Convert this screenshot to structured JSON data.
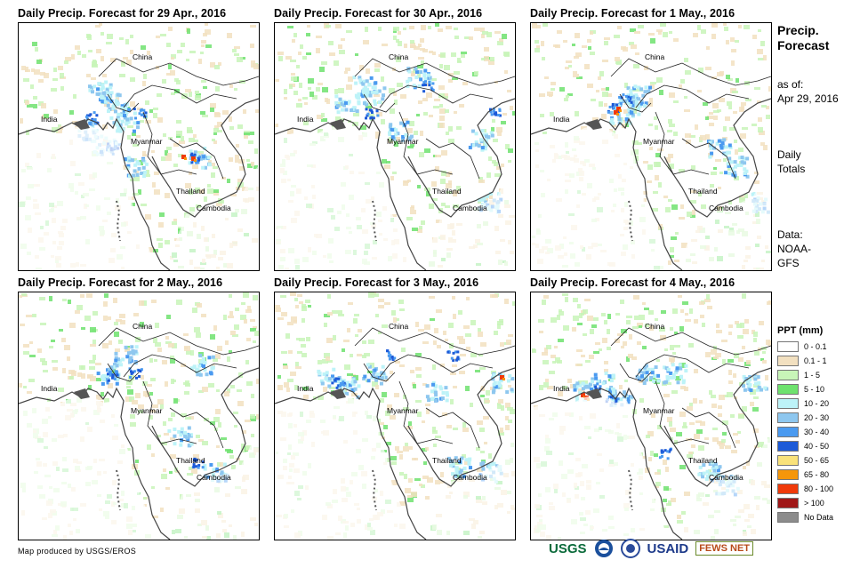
{
  "panels": [
    {
      "title": "Daily Precip. Forecast for 29 Apr., 2016",
      "heavy": [
        [
          90,
          75
        ],
        [
          100,
          85
        ],
        [
          75,
          120
        ],
        [
          110,
          100
        ],
        [
          95,
          135
        ],
        [
          120,
          110
        ],
        [
          200,
          150
        ],
        [
          130,
          160
        ]
      ],
      "medium": [
        [
          198,
          150
        ],
        [
          135,
          100
        ],
        [
          82,
          105
        ],
        [
          105,
          140
        ]
      ],
      "extreme": [
        [
          185,
          150
        ],
        [
          196,
          152
        ]
      ]
    },
    {
      "title": "Daily Precip. Forecast for 30 Apr., 2016",
      "heavy": [
        [
          100,
          70
        ],
        [
          110,
          80
        ],
        [
          160,
          60
        ],
        [
          230,
          130
        ],
        [
          240,
          200
        ],
        [
          140,
          120
        ],
        [
          80,
          90
        ]
      ],
      "medium": [
        [
          108,
          100
        ],
        [
          170,
          70
        ],
        [
          245,
          100
        ]
      ],
      "extreme": []
    },
    {
      "title": "Daily Precip. Forecast for 1 May., 2016",
      "heavy": [
        [
          100,
          100
        ],
        [
          110,
          90
        ],
        [
          120,
          80
        ],
        [
          210,
          140
        ],
        [
          230,
          160
        ],
        [
          260,
          200
        ]
      ],
      "medium": [
        [
          90,
          95
        ],
        [
          105,
          85
        ]
      ],
      "extreme": [
        [
          95,
          100
        ],
        [
          98,
          96
        ]
      ]
    },
    {
      "title": "Daily Precip. Forecast for 2 May., 2016",
      "heavy": [
        [
          100,
          90
        ],
        [
          120,
          70
        ],
        [
          205,
          80
        ],
        [
          180,
          160
        ],
        [
          220,
          200
        ]
      ],
      "medium": [
        [
          105,
          95
        ],
        [
          130,
          90
        ],
        [
          200,
          190
        ]
      ],
      "extreme": []
    },
    {
      "title": "Daily Precip. Forecast for 3 May., 2016",
      "heavy": [
        [
          60,
          95
        ],
        [
          80,
          105
        ],
        [
          110,
          90
        ],
        [
          180,
          110
        ],
        [
          255,
          100
        ],
        [
          240,
          200
        ],
        [
          205,
          195
        ]
      ],
      "medium": [
        [
          70,
          100
        ],
        [
          130,
          70
        ],
        [
          200,
          70
        ]
      ],
      "extreme": [
        [
          255,
          95
        ]
      ]
    },
    {
      "title": "Daily Precip. Forecast for 4 May., 2016",
      "heavy": [
        [
          60,
          110
        ],
        [
          80,
          100
        ],
        [
          100,
          115
        ],
        [
          130,
          90
        ],
        [
          160,
          90
        ],
        [
          200,
          200
        ],
        [
          220,
          215
        ],
        [
          250,
          100
        ]
      ],
      "medium": [
        [
          70,
          105
        ],
        [
          90,
          120
        ],
        [
          150,
          180
        ]
      ],
      "extreme": [
        [
          58,
          115
        ],
        [
          62,
          118
        ]
      ]
    }
  ],
  "map_labels": {
    "china": "China",
    "india": "India",
    "myanmar": "Myanmar",
    "thailand": "Thailand",
    "cambodia": "Cambodia"
  },
  "sidebar": {
    "title_line1": "Precip.",
    "title_line2": "Forecast",
    "asof_line1": "as of:",
    "asof_line2": "Apr 29, 2016",
    "daily_line1": "Daily",
    "daily_line2": "Totals",
    "data_line1": "Data:",
    "data_line2": "NOAA-",
    "data_line3": "GFS"
  },
  "legend": {
    "title": "PPT (mm)",
    "items": [
      {
        "label": "0 - 0.1",
        "color": "#ffffff"
      },
      {
        "label": "0.1 - 1",
        "color": "#f2e0c0"
      },
      {
        "label": "1 - 5",
        "color": "#c8f5b8"
      },
      {
        "label": "5 - 10",
        "color": "#6ee26e"
      },
      {
        "label": "10 - 20",
        "color": "#bdf3f8"
      },
      {
        "label": "20 - 30",
        "color": "#8ec7ef"
      },
      {
        "label": "30 - 40",
        "color": "#4a9af0"
      },
      {
        "label": "40 - 50",
        "color": "#1c5ad8"
      },
      {
        "label": "50 - 65",
        "color": "#f9e27a"
      },
      {
        "label": "65 - 80",
        "color": "#f5960a"
      },
      {
        "label": "80 - 100",
        "color": "#f03a0a"
      },
      {
        "label": "> 100",
        "color": "#a01818"
      },
      {
        "label": "No Data",
        "color": "#8c8c8c"
      }
    ]
  },
  "footer": {
    "credit": "Map produced by USGS/EROS"
  },
  "logos": {
    "usgs": "USGS",
    "usaid": "USAID",
    "fews": "FEWS NET"
  }
}
